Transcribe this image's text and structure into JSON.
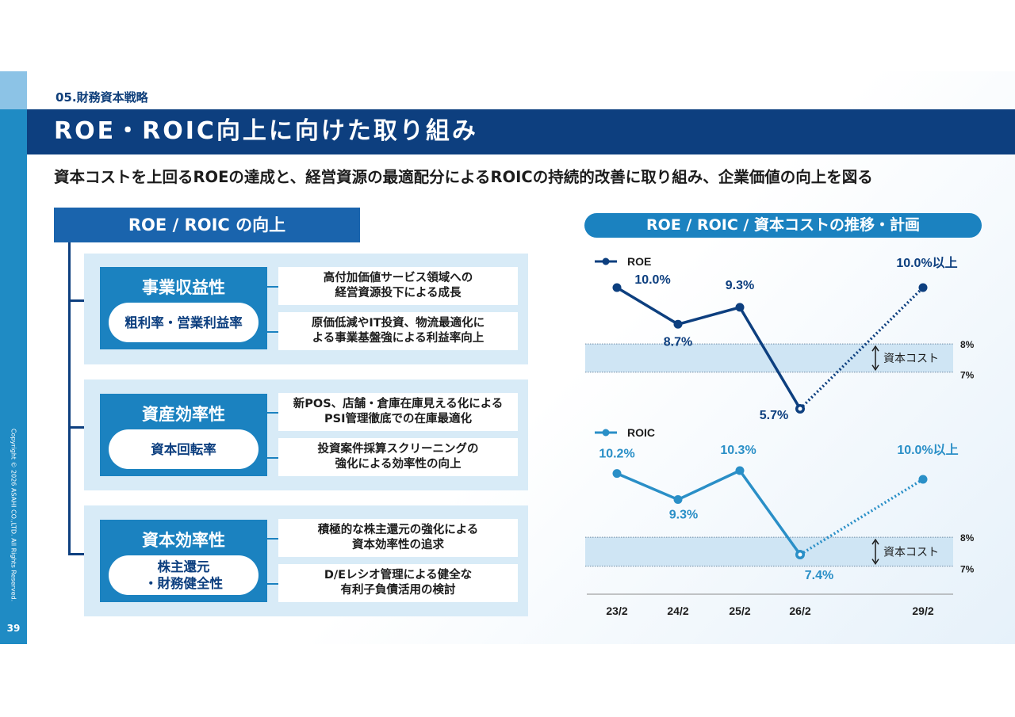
{
  "section_label": "05.財務資本戦略",
  "title": "ROE・ROIC向上に向けた取り組み",
  "subtitle": "資本コストを上回るROEの達成と、経営資源の最適配分によるROICの持続的改善に取り組み、企業価値の向上を図る",
  "page_number": "39",
  "copyright": "Copyright © 2026 ASAHI CO.,LTD. All Rights Reserved.",
  "colors": {
    "navy": "#0d3f7f",
    "blue": "#1b82c0",
    "light": "#d8ebf7"
  },
  "left_panel": {
    "header": "ROE / ROIC の向上",
    "groups": [
      {
        "title": "事業収益性",
        "pill": "粗利率・営業利益率",
        "items": [
          "高付加価値サービス領域への\n経営資源投下による成長",
          "原価低減やIT投資、物流最適化に\nよる事業基盤強による利益率向上"
        ]
      },
      {
        "title": "資産効率性",
        "pill": "資本回転率",
        "items": [
          "新POS、店舗・倉庫在庫見える化による\nPSI管理徹底での在庫最適化",
          "投資案件採算スクリーニングの\n強化による効率性の向上"
        ]
      },
      {
        "title": "資本効率性",
        "pill": "株主還元\n・財務健全性",
        "items": [
          "積極的な株主還元の強化による\n資本効率性の追求",
          "D/Eレシオ管理による健全な\n有利子負債活用の検討"
        ]
      }
    ]
  },
  "right_panel": {
    "header": "ROE / ROIC / 資本コストの推移・計画"
  },
  "chart_data": [
    {
      "type": "line",
      "name": "ROE",
      "legend": "ROE",
      "categories": [
        "23/2",
        "24/2",
        "25/2",
        "26/2",
        "29/2"
      ],
      "values": [
        10.0,
        8.7,
        9.3,
        5.7,
        10.0
      ],
      "labels": [
        "10.0%",
        "8.7%",
        "9.3%",
        "5.7%",
        "10.0%以上"
      ],
      "plan_from_index": 3,
      "cost_band": {
        "low": 7,
        "high": 8,
        "low_label": "7%",
        "high_label": "8%",
        "label": "資本コスト"
      },
      "color": "#0d3f7f"
    },
    {
      "type": "line",
      "name": "ROIC",
      "legend": "ROIC",
      "categories": [
        "23/2",
        "24/2",
        "25/2",
        "26/2",
        "29/2"
      ],
      "values": [
        10.2,
        9.3,
        10.3,
        7.4,
        10.0
      ],
      "labels": [
        "10.2%",
        "9.3%",
        "10.3%",
        "7.4%",
        "10.0%以上"
      ],
      "plan_from_index": 3,
      "cost_band": {
        "low": 7,
        "high": 8,
        "low_label": "7%",
        "high_label": "8%",
        "label": "資本コスト"
      },
      "color": "#2a8fc7"
    }
  ]
}
